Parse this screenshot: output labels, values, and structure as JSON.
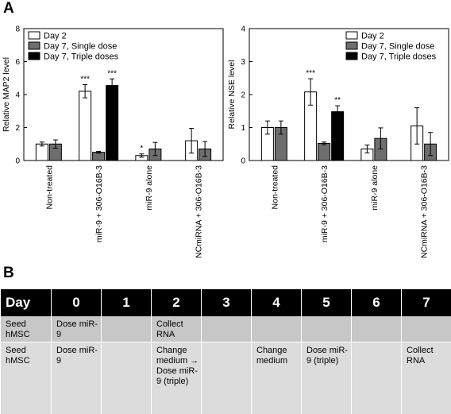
{
  "panel_a_label": "A",
  "panel_b_label": "B",
  "chart_data": [
    {
      "type": "bar",
      "ylabel": "Relative MAP2 level",
      "ylim": [
        0,
        8
      ],
      "yticks": [
        "0",
        "2",
        "4",
        "6",
        "8"
      ],
      "categories": [
        "Non-treated",
        "miR-9 + 306-O16B-3",
        "miR-9 alone",
        "NCmiRNA + 306-O16B-3"
      ],
      "legend_position": "top-left",
      "series": [
        {
          "name": "Day 2",
          "color": "#ffffff",
          "values": [
            1.0,
            4.2,
            0.3,
            1.2
          ],
          "errors": [
            0.12,
            0.4,
            0.1,
            0.75
          ],
          "significance": [
            "",
            "***",
            "*",
            ""
          ]
        },
        {
          "name": "Day 7, Single dose",
          "color": "#6e6e6e",
          "values": [
            1.0,
            0.5,
            0.7,
            0.7
          ],
          "errors": [
            0.25,
            0.05,
            0.4,
            0.45
          ],
          "significance": [
            "",
            "",
            "",
            ""
          ]
        },
        {
          "name": "Day 7, Triple doses",
          "color": "#000000",
          "values": [
            null,
            4.55,
            null,
            null
          ],
          "errors": [
            null,
            0.4,
            null,
            null
          ],
          "significance": [
            "",
            "***",
            "",
            ""
          ]
        }
      ]
    },
    {
      "type": "bar",
      "ylabel": "Relative NSE level",
      "ylim": [
        0,
        4
      ],
      "yticks": [
        "0",
        "1",
        "2",
        "3",
        "4"
      ],
      "categories": [
        "Non-treated",
        "miR-9 + 306-O16B-3",
        "miR-9 alone",
        "NCmiRNA + 306-O16B-3"
      ],
      "legend_position": "top-right",
      "series": [
        {
          "name": "Day 2",
          "color": "#ffffff",
          "values": [
            1.0,
            2.08,
            0.35,
            1.05
          ],
          "errors": [
            0.2,
            0.4,
            0.12,
            0.55
          ],
          "significance": [
            "",
            "***",
            "",
            ""
          ]
        },
        {
          "name": "Day 7, Single dose",
          "color": "#6e6e6e",
          "values": [
            1.0,
            0.52,
            0.67,
            0.5
          ],
          "errors": [
            0.2,
            0.04,
            0.32,
            0.35
          ],
          "significance": [
            "",
            "",
            "",
            ""
          ]
        },
        {
          "name": "Day 7, Triple doses",
          "color": "#000000",
          "values": [
            null,
            1.48,
            null,
            null
          ],
          "errors": [
            null,
            0.18,
            null,
            null
          ],
          "significance": [
            "",
            "**",
            "",
            ""
          ]
        }
      ]
    }
  ],
  "schedule": {
    "header": [
      "Day",
      "0",
      "1",
      "2",
      "3",
      "4",
      "5",
      "6",
      "7"
    ],
    "rows": [
      [
        "Seed hMSC",
        "Dose miR-9",
        "",
        "Collect RNA",
        "",
        "",
        "",
        "",
        ""
      ],
      [
        "Seed hMSC",
        "Dose miR-9",
        "",
        "Change medium → Dose miR-9 (triple)",
        "",
        "Change medium",
        "Dose miR-9 (triple)",
        "",
        "Collect RNA"
      ]
    ]
  }
}
